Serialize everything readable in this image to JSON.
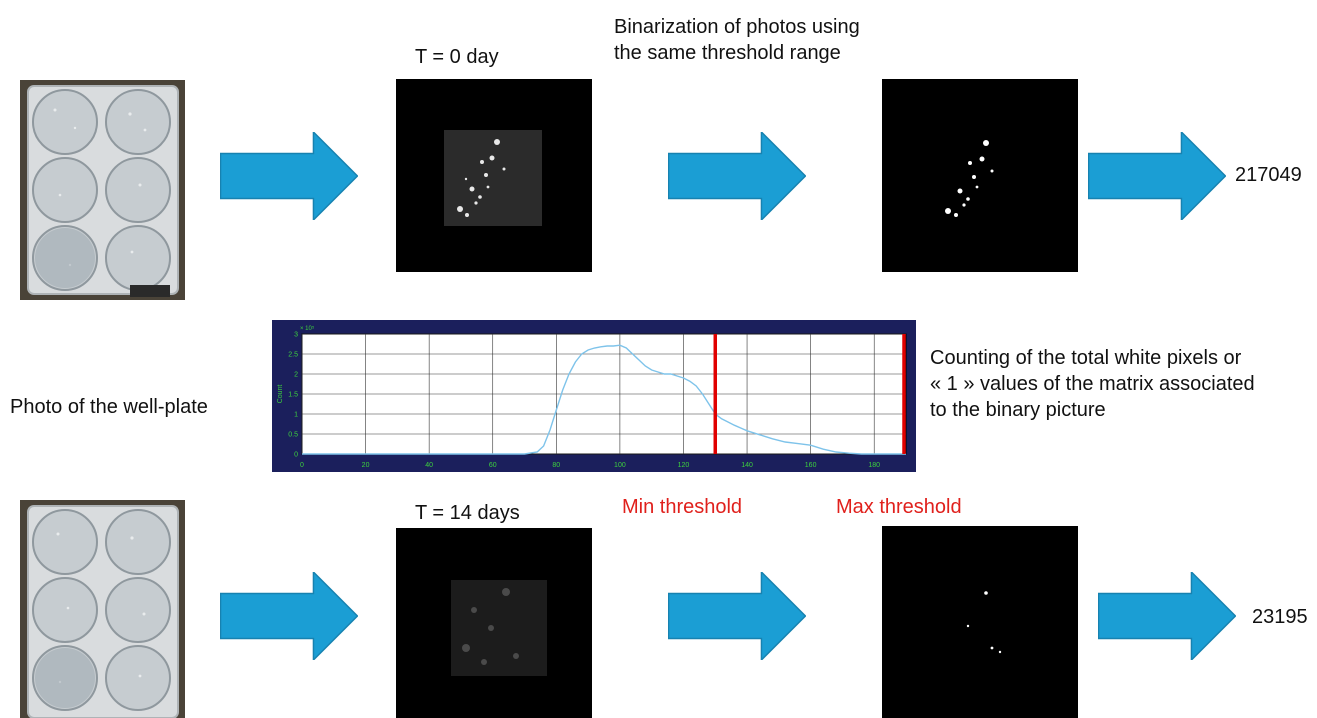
{
  "diagram": {
    "top_row": {
      "time_label": "T = 0 day",
      "binarization_caption_line1": "Binarization of photos using",
      "binarization_caption_line2": "the same threshold range",
      "count_value": "217049"
    },
    "middle": {
      "well_plate_caption": "Photo of the well-plate",
      "counting_caption_line1": "Counting of the total white pixels or",
      "counting_caption_line2": "« 1 » values of the matrix associated",
      "counting_caption_line3": "to the binary picture"
    },
    "bottom_row": {
      "time_label": "T = 14 days",
      "min_threshold_label": "Min threshold",
      "max_threshold_label": "Max threshold",
      "count_value": "23195"
    },
    "colors": {
      "arrow": "#1b9ed4",
      "arrow_edge": "#1782b0",
      "threshold_text": "#e0201c",
      "histogram_frame": "#1b1f5c",
      "histogram_curve": "#7ec3ea",
      "threshold_line": "#e00000"
    }
  },
  "chart_data": {
    "type": "line",
    "title": "",
    "xlabel": "",
    "ylabel": "Count",
    "y_multiplier_label": "× 10⁵",
    "xlim": [
      0,
      190
    ],
    "ylim": [
      0,
      3
    ],
    "x_ticks": [
      "0",
      "20",
      "40",
      "60",
      "80",
      "100",
      "120",
      "140",
      "160",
      "180"
    ],
    "y_ticks": [
      "0",
      "0.5",
      "1",
      "1.5",
      "2",
      "2.5",
      "3"
    ],
    "grid": true,
    "series": [
      {
        "x": [
          0,
          70,
          74,
          76,
          78,
          80,
          82,
          84,
          86,
          88,
          90,
          92,
          94,
          96,
          98,
          100,
          102,
          104,
          106,
          108,
          110,
          112,
          114,
          116,
          118,
          120,
          122,
          124,
          126,
          128,
          130,
          132,
          134,
          136,
          138,
          140,
          144,
          148,
          152,
          156,
          160,
          164,
          168,
          172,
          176,
          190
        ],
        "y": [
          0,
          0,
          0.05,
          0.2,
          0.6,
          1.1,
          1.6,
          2.0,
          2.3,
          2.5,
          2.6,
          2.65,
          2.68,
          2.7,
          2.7,
          2.72,
          2.65,
          2.5,
          2.35,
          2.2,
          2.1,
          2.05,
          2.0,
          2.0,
          1.95,
          1.9,
          1.82,
          1.7,
          1.5,
          1.25,
          1.0,
          0.88,
          0.8,
          0.72,
          0.65,
          0.58,
          0.48,
          0.38,
          0.3,
          0.26,
          0.22,
          0.12,
          0.05,
          0.02,
          0,
          0
        ]
      }
    ],
    "thresholds": [
      {
        "name": "Min threshold",
        "x": 130
      },
      {
        "name": "Max threshold",
        "x": 190
      }
    ]
  }
}
